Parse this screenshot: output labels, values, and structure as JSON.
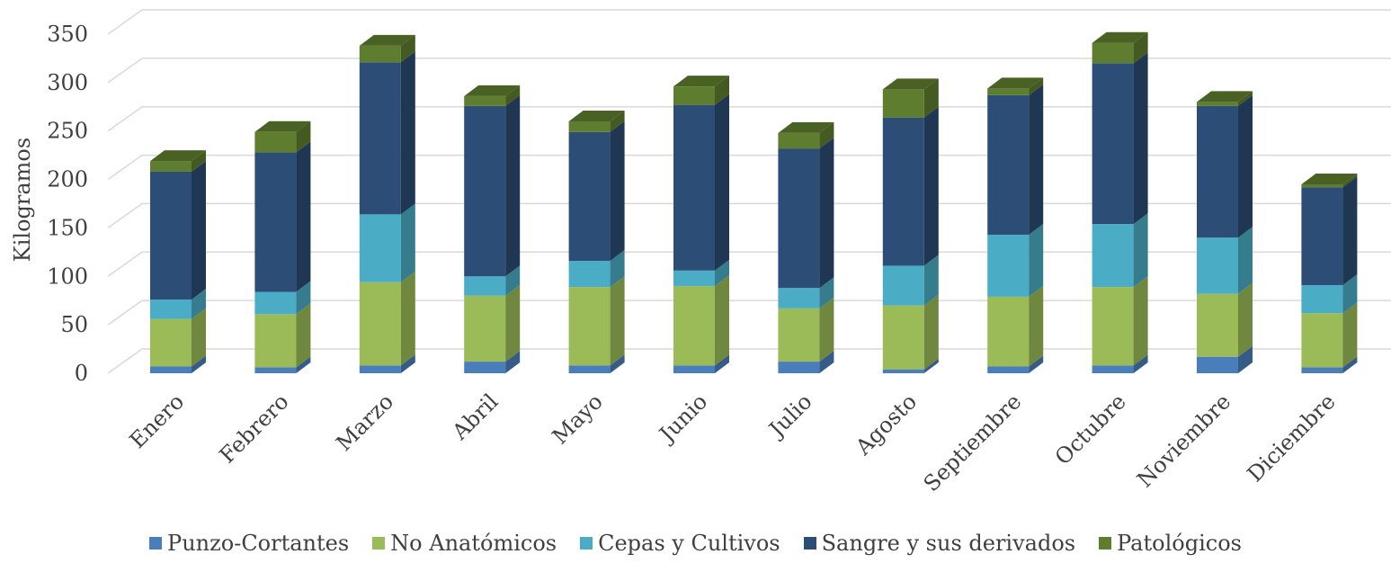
{
  "chart_data": {
    "type": "bar",
    "stacked": true,
    "style": "3d-column",
    "ylabel": "Kilogramos",
    "ylim": [
      0,
      350
    ],
    "yticks": [
      0,
      50,
      100,
      150,
      200,
      250,
      300,
      350
    ],
    "grid": true,
    "legend_position": "bottom",
    "categories": [
      "Enero",
      "Febrero",
      "Marzo",
      "Abril",
      "Mayo",
      "Junio",
      "Julio",
      "Agosto",
      "Septiembre",
      "Octubre",
      "Noviembre",
      "Diciembre"
    ],
    "series": [
      {
        "name": "Punzo-Cortantes",
        "color": "#4a7ebb",
        "values": [
          7,
          6,
          8,
          12,
          8,
          8,
          12,
          4,
          7,
          8,
          17,
          6
        ]
      },
      {
        "name": "No Anatómicos",
        "color": "#9bbb59",
        "values": [
          49,
          55,
          86,
          68,
          81,
          82,
          55,
          66,
          72,
          81,
          65,
          56
        ]
      },
      {
        "name": "Cepas y Cultivos",
        "color": "#4bacc6",
        "values": [
          20,
          23,
          70,
          20,
          27,
          16,
          21,
          41,
          64,
          65,
          58,
          29
        ]
      },
      {
        "name": "Sangre y sus derivados",
        "color": "#2c4d75",
        "values": [
          132,
          144,
          157,
          176,
          133,
          171,
          144,
          153,
          144,
          166,
          136,
          101
        ]
      },
      {
        "name": "Patológicos",
        "color": "#5e7d2e",
        "values": [
          11,
          21,
          17,
          10,
          11,
          19,
          16,
          29,
          7,
          21,
          4,
          3
        ]
      }
    ]
  }
}
